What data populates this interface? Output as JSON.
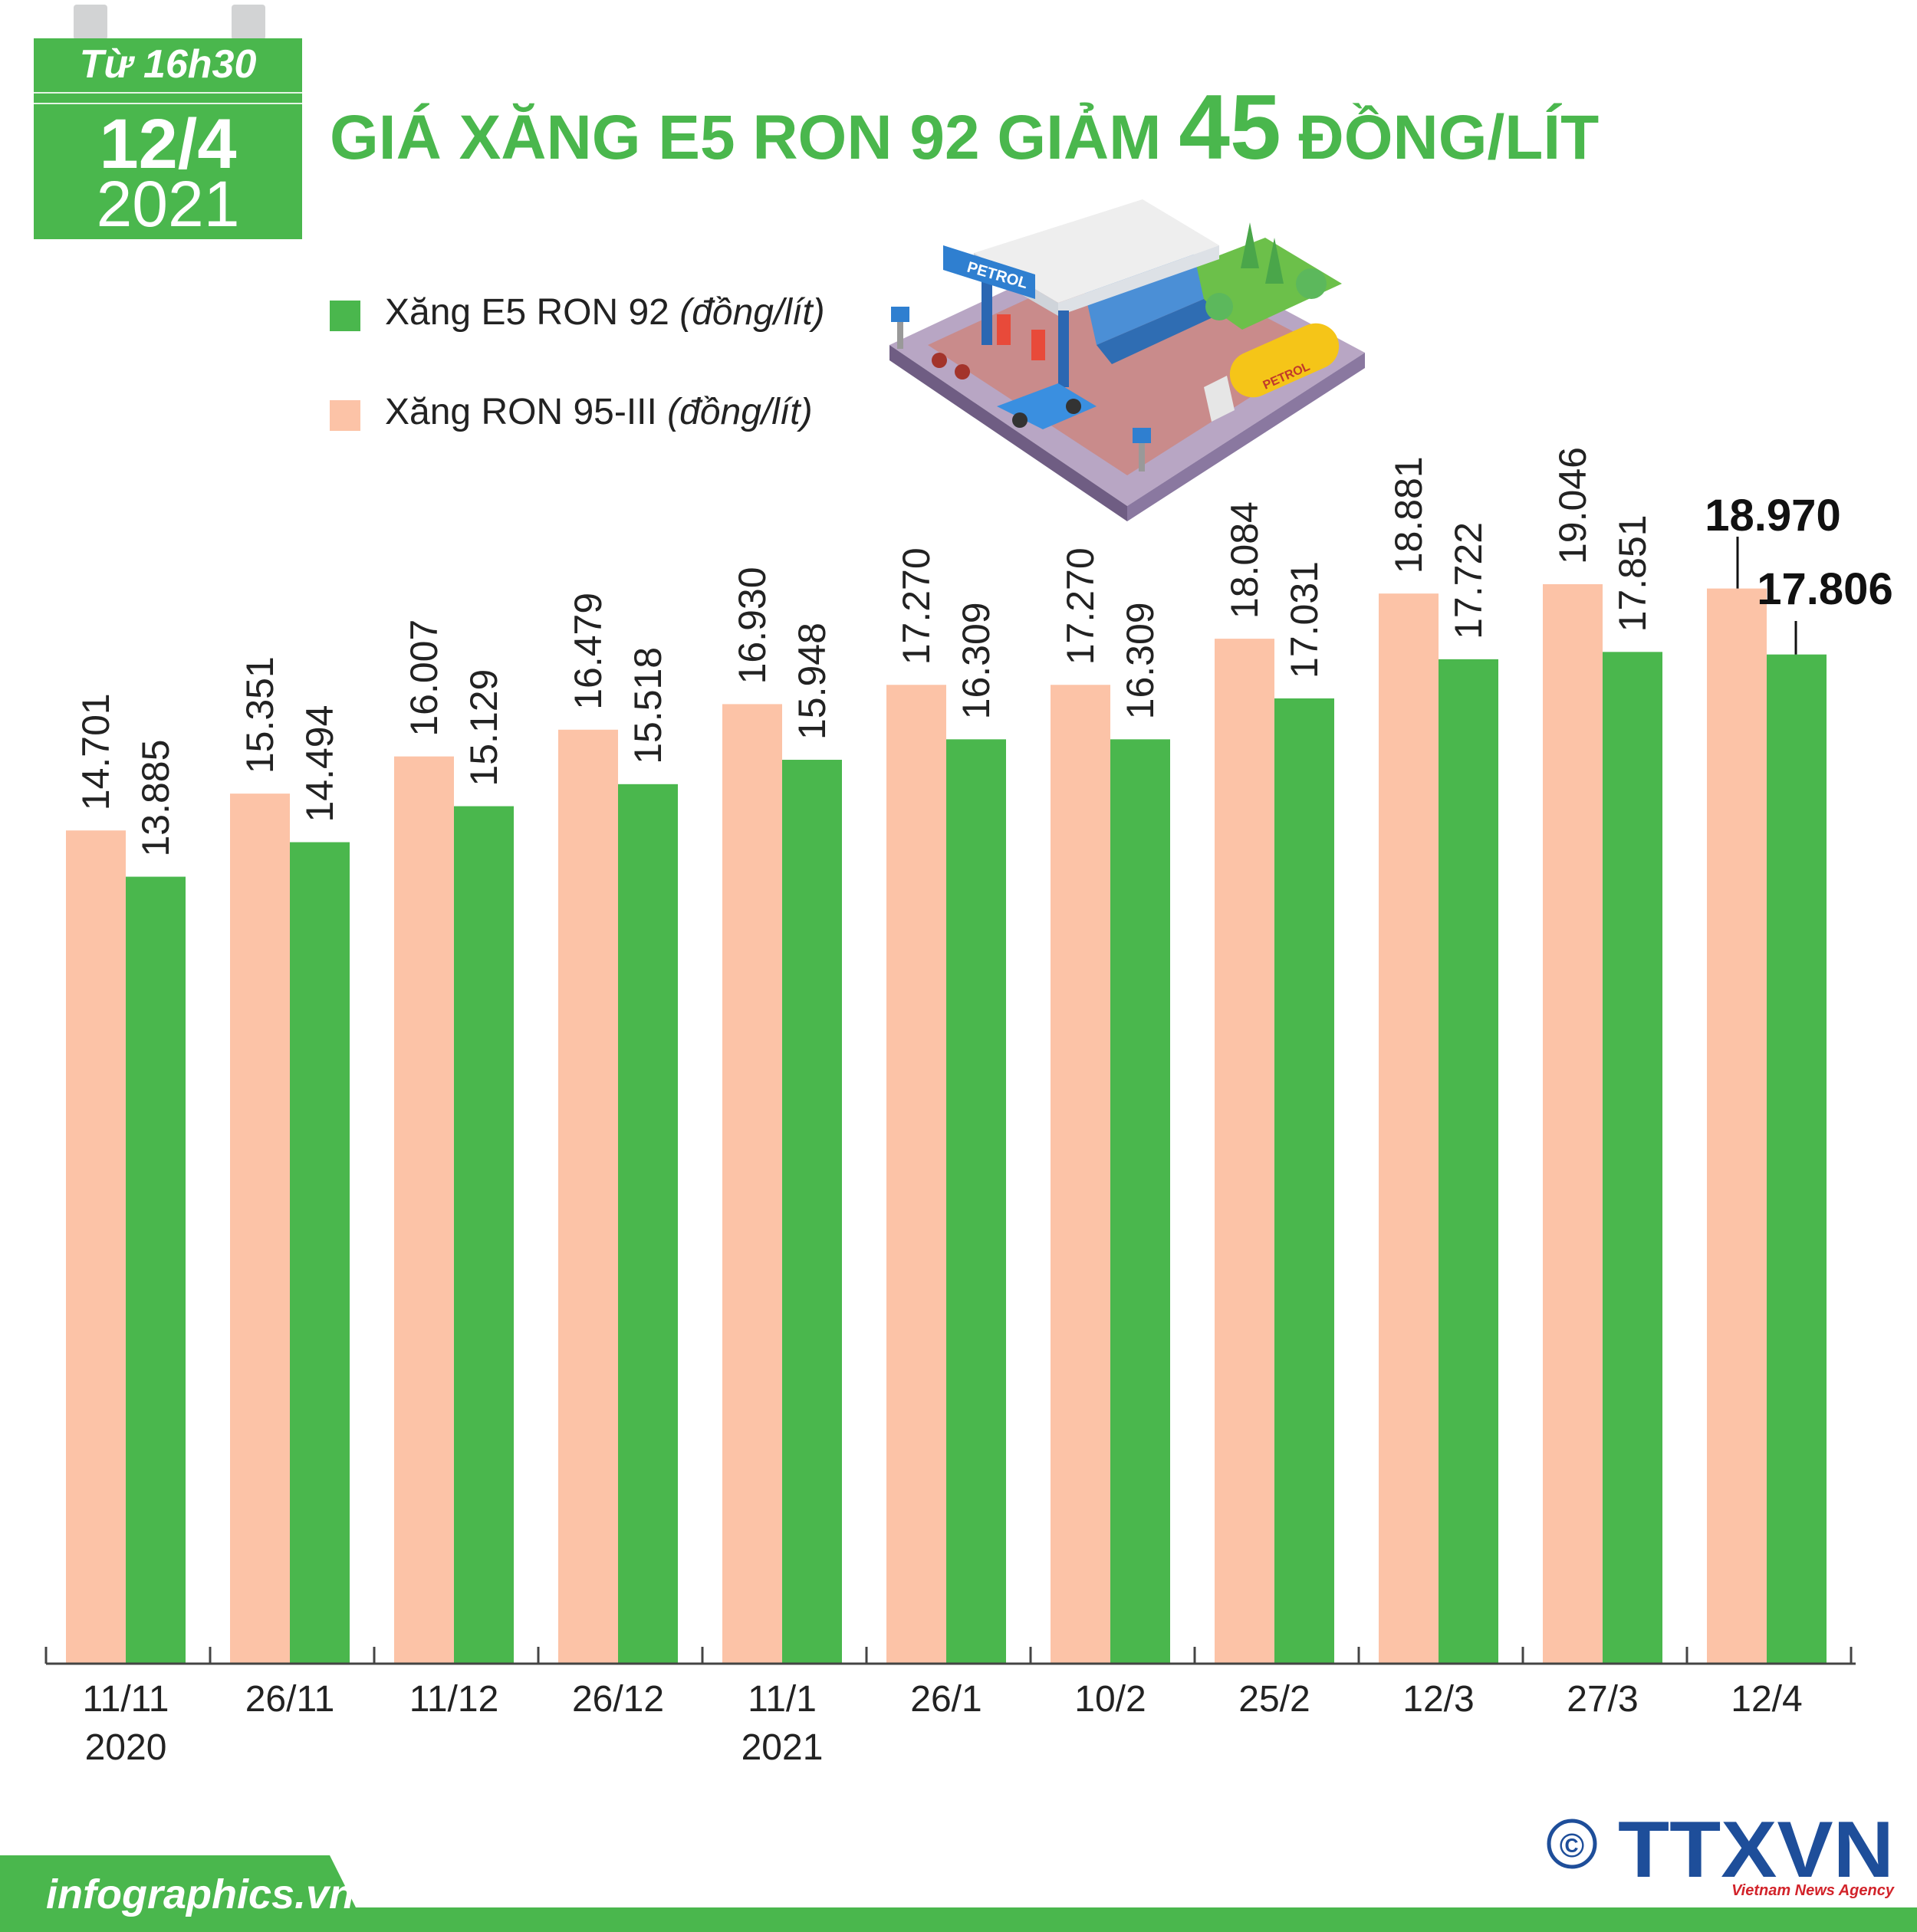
{
  "header": {
    "time": "Từ 16h30",
    "date": "12/4",
    "year": "2021",
    "title_prefix": "GIÁ XĂNG E5 RON 92 GIẢM ",
    "title_number": "45",
    "title_suffix": " ĐỒNG/LÍT"
  },
  "legend": [
    {
      "label": "Xăng E5 RON 92 ",
      "unit": "(đồng/lít)",
      "color": "#4ab74d"
    },
    {
      "label": "Xăng RON 95-III ",
      "unit": "(đồng/lít)",
      "color": "#fcc3a7"
    }
  ],
  "illustration": {
    "sign_text": "PETROL",
    "tank_text": "PETROL"
  },
  "chart_data": {
    "type": "bar",
    "categories": [
      "11/11",
      "26/11",
      "11/12",
      "26/12",
      "11/1",
      "26/1",
      "10/2",
      "25/2",
      "12/3",
      "27/3",
      "12/4"
    ],
    "category_sublabels": [
      "2020",
      "",
      "",
      "",
      "2021",
      "",
      "",
      "",
      "",
      "",
      ""
    ],
    "series": [
      {
        "name": "Xăng RON 95-III",
        "color": "#fcc3a7",
        "values": [
          14701,
          15351,
          16007,
          16479,
          16930,
          17270,
          17270,
          18084,
          18881,
          19046,
          18970
        ],
        "labels": [
          "14.701",
          "15.351",
          "16.007",
          "16.479",
          "16.930",
          "17.270",
          "17.270",
          "18.084",
          "18.881",
          "19.046",
          "18.970"
        ]
      },
      {
        "name": "Xăng E5 RON 92",
        "color": "#4ab74d",
        "values": [
          13885,
          14494,
          15129,
          15518,
          15948,
          16309,
          16309,
          17031,
          17722,
          17851,
          17806
        ],
        "labels": [
          "13.885",
          "14.494",
          "15.129",
          "15.518",
          "15.948",
          "16.309",
          "16.309",
          "17.031",
          "17.722",
          "17.851",
          "17.806"
        ]
      }
    ],
    "ylim": [
      0,
      19046
    ],
    "grid": false
  },
  "footer": {
    "website": "infographics.vn",
    "copyright_symbol": "©",
    "agency": "TTXVN",
    "agency_sub": "Vietnam News Agency"
  }
}
